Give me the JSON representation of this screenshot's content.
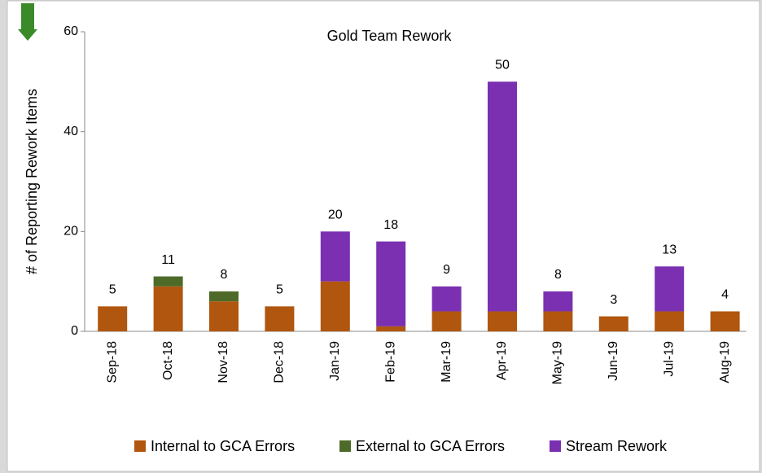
{
  "chart_data": {
    "type": "stacked_bar",
    "title": "Gold Team Rework",
    "y_label": "# of Reporting Rework Items",
    "categories": [
      "Sep-18",
      "Oct-18",
      "Nov-18",
      "Dec-18",
      "Jan-19",
      "Feb-19",
      "Mar-19",
      "Apr-19",
      "May-19",
      "Jun-19",
      "Jul-19",
      "Aug-19"
    ],
    "series": [
      {
        "name": "Internal to GCA Errors",
        "color": "#b0560e",
        "values": [
          5,
          9,
          6,
          5,
          10,
          1,
          4,
          4,
          4,
          3,
          4,
          4
        ]
      },
      {
        "name": "External to GCA Errors",
        "color": "#4e6a28",
        "values": [
          0,
          2,
          2,
          0,
          0,
          0,
          0,
          0,
          0,
          0,
          0,
          0
        ]
      },
      {
        "name": "Stream Rework",
        "color": "#7a30b0",
        "values": [
          0,
          0,
          0,
          0,
          10,
          17,
          5,
          46,
          4,
          0,
          9,
          0
        ]
      }
    ],
    "total_labels": [
      5,
      11,
      8,
      5,
      20,
      18,
      9,
      50,
      8,
      3,
      13,
      4
    ],
    "ylim": [
      0,
      60
    ],
    "yticks": [
      0,
      20,
      40,
      60
    ],
    "legend": "bottom"
  }
}
